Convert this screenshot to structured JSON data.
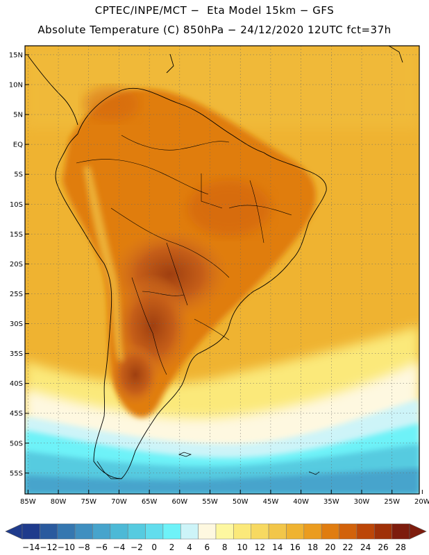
{
  "header": {
    "line1": "CPTEC/INPE/MCT −  Eta Model 15km − GFS",
    "line2": "Absolute Temperature (C) 850hPa − 24/12/2020 12UTC fct=37h"
  },
  "map": {
    "lat_labels": [
      "15N",
      "10N",
      "5N",
      "EQ",
      "5S",
      "10S",
      "15S",
      "20S",
      "25S",
      "30S",
      "35S",
      "40S",
      "45S",
      "50S",
      "55S"
    ],
    "lat_values": [
      15,
      10,
      5,
      0,
      -5,
      -10,
      -15,
      -20,
      -25,
      -30,
      -35,
      -40,
      -45,
      -50,
      -55
    ],
    "lon_labels": [
      "85W",
      "80W",
      "75W",
      "70W",
      "65W",
      "60W",
      "55W",
      "50W",
      "45W",
      "40W",
      "35W",
      "30W",
      "25W",
      "20W"
    ],
    "lon_values": [
      -85,
      -80,
      -75,
      -70,
      -65,
      -60,
      -55,
      -50,
      -45,
      -40,
      -35,
      -30,
      -25,
      -20
    ],
    "lon_range": [
      -85.5,
      -20.5
    ],
    "lat_range": [
      16.5,
      -58.5
    ]
  },
  "colorbar": {
    "labels": [
      "-14",
      "-12",
      "-10",
      "-8",
      "-6",
      "-4",
      "-2",
      "0",
      "2",
      "4",
      "6",
      "8",
      "10",
      "12",
      "14",
      "16",
      "18",
      "20",
      "22",
      "24",
      "26",
      "28"
    ],
    "colors": [
      "#1f3b8c",
      "#2a5a9e",
      "#3577b0",
      "#3f8fc0",
      "#47a4cc",
      "#4db9d6",
      "#56cbe0",
      "#62dded",
      "#6ef2f8",
      "#cdf4f8",
      "#fef8e0",
      "#fdf7a0",
      "#fbe97a",
      "#f7d961",
      "#f2c649",
      "#efb331",
      "#eb9c1f",
      "#e07d10",
      "#d2620a",
      "#bc4607",
      "#9f3007",
      "#7d1c0d"
    ]
  }
}
